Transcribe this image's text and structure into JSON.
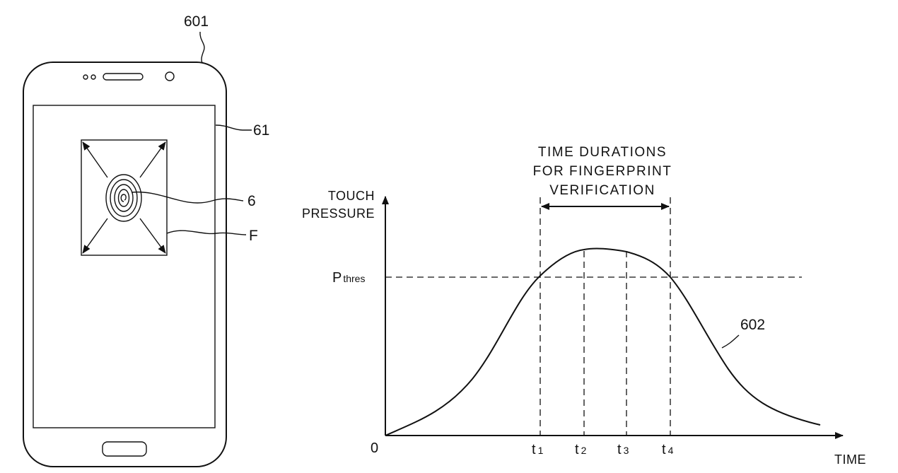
{
  "labels": {
    "device": "601",
    "screen": "61",
    "fingerprint": "6",
    "sensing_area": "F",
    "curve": "602"
  },
  "annotation": {
    "line1": "TIME DURATIONS",
    "line2": "FOR FINGERPRINT",
    "line3": "VERIFICATION"
  },
  "axes": {
    "y_label_line1": "TOUCH",
    "y_label_line2": "PRESSURE",
    "x_label": "TIME",
    "origin": "0",
    "threshold_main": "P",
    "threshold_sub": "thres"
  },
  "ticks": [
    {
      "main": "t",
      "sub": "1"
    },
    {
      "main": "t",
      "sub": "2"
    },
    {
      "main": "t",
      "sub": "3"
    },
    {
      "main": "t",
      "sub": "4"
    }
  ]
}
